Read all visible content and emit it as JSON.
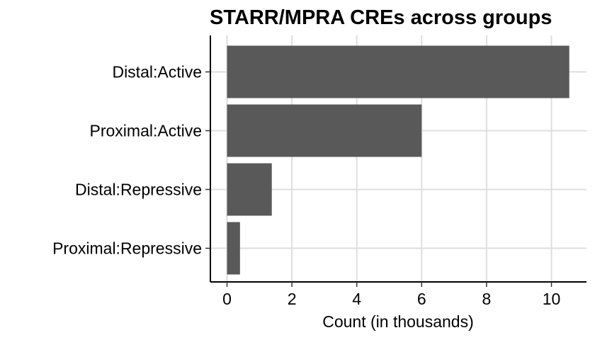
{
  "chart_data": {
    "type": "bar",
    "orientation": "horizontal",
    "title": "STARR/MPRA CREs across groups",
    "xlabel": "Count (in thousands)",
    "ylabel": "",
    "categories": [
      "Distal:Active",
      "Proximal:Active",
      "Distal:Repressive",
      "Proximal:Repressive"
    ],
    "values": [
      10.55,
      6.0,
      1.38,
      0.4
    ],
    "xlim": [
      -0.5,
      11.2
    ],
    "x_ticks": [
      0,
      2,
      4,
      6,
      8,
      10
    ],
    "x_tick_labels": [
      "0",
      "2",
      "4",
      "6",
      "8",
      "10"
    ],
    "grid": true,
    "colors": {
      "bar": "#595959",
      "grid": "#dedede",
      "axis": "#000000"
    }
  }
}
